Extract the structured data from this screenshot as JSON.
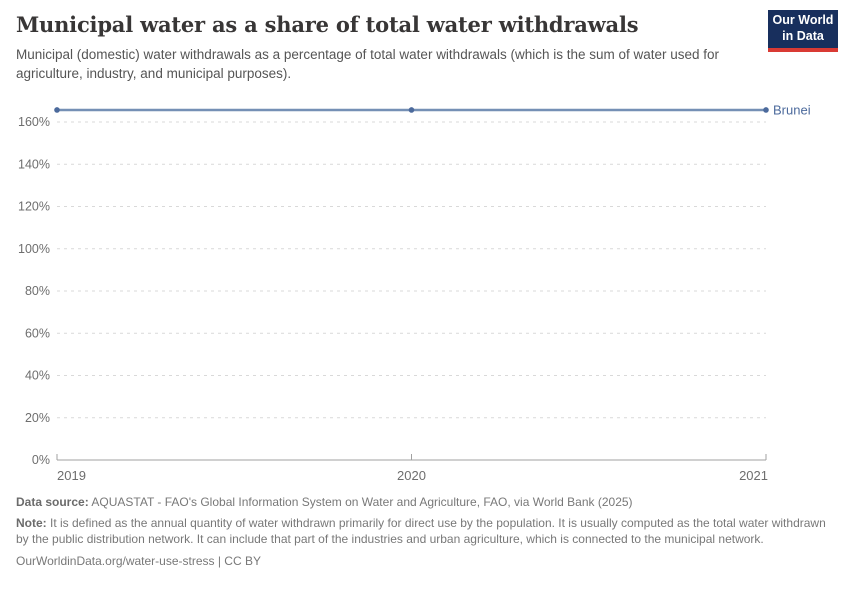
{
  "header": {
    "title": "Municipal water as a share of total water withdrawals",
    "subtitle": "Municipal (domestic) water withdrawals as a percentage of total water withdrawals (which is the sum of water used for agriculture, industry, and municipal purposes).",
    "logo": {
      "line1": "Our World",
      "line2": "in Data",
      "bg_color": "#182f5d",
      "stripe_color": "#d93a34"
    }
  },
  "chart_data": {
    "type": "line",
    "title": "Municipal water as a share of total water withdrawals",
    "x": [
      2019,
      2020,
      2021
    ],
    "xtick_labels": [
      "2019",
      "2020",
      "2021"
    ],
    "ytick_values": [
      0,
      20,
      40,
      60,
      80,
      100,
      120,
      140,
      160
    ],
    "ytick_labels": [
      "0%",
      "20%",
      "40%",
      "60%",
      "80%",
      "100%",
      "120%",
      "140%",
      "160%"
    ],
    "ylim": [
      0,
      160
    ],
    "grid": "horizontal-dashed",
    "legend_position": "end-of-line-label",
    "series": [
      {
        "name": "Brunei",
        "values": [
          165.7,
          165.7,
          165.7
        ],
        "color": "#4C6A9C",
        "line_color": "#7590b5"
      }
    ]
  },
  "footer": {
    "data_source_label": "Data source:",
    "data_source_text": " AQUASTAT - FAO's Global Information System on Water and Agriculture, FAO, via World Bank (2025)",
    "note_label": "Note:",
    "note_text": " It is defined as the annual quantity of water withdrawn primarily for direct use by the population. It is usually computed as the total water withdrawn by the public distribution network. It can include that part of the industries and urban agriculture, which is connected to the municipal network.",
    "citation": "OurWorldinData.org/water-use-stress | CC BY"
  }
}
